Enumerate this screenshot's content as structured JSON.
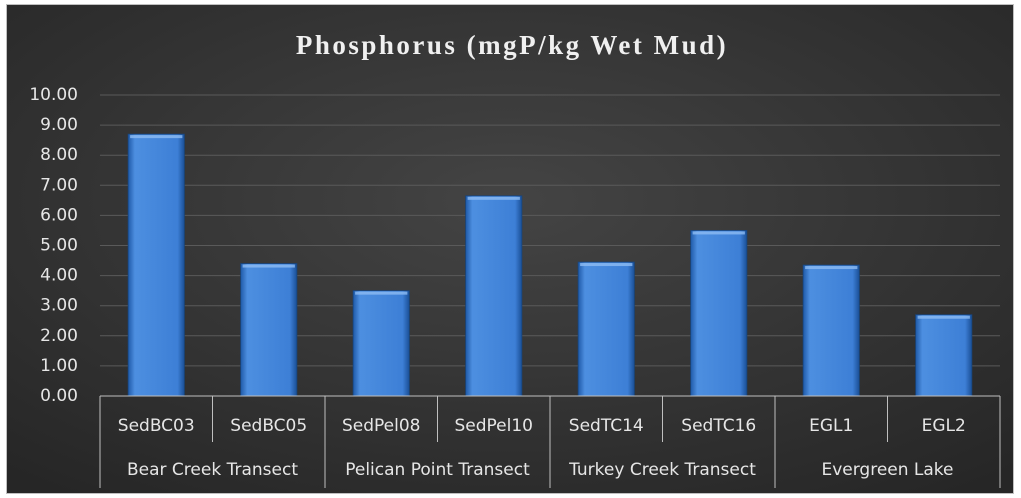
{
  "chart_data": {
    "type": "bar",
    "title": "Phosphorus (mgP/kg Wet Mud)",
    "categories": [
      "SedBC03",
      "SedBC05",
      "SedPel08",
      "SedPel10",
      "SedTC14",
      "SedTC16",
      "EGL1",
      "EGL2"
    ],
    "category_groups": [
      "Bear Creek Transect",
      "Pelican Point Transect",
      "Turkey Creek Transect",
      "Evergreen Lake"
    ],
    "values": [
      8.7,
      4.4,
      3.5,
      6.65,
      4.45,
      5.5,
      4.35,
      2.7
    ],
    "color": "#3d7fd6",
    "ylim": [
      0,
      10
    ],
    "yticks": [
      {
        "value": 0,
        "label": "0.00"
      },
      {
        "value": 1,
        "label": "1.00"
      },
      {
        "value": 2,
        "label": "2.00"
      },
      {
        "value": 3,
        "label": "3.00"
      },
      {
        "value": 4,
        "label": "4.00"
      },
      {
        "value": 5,
        "label": "5.00"
      },
      {
        "value": 6,
        "label": "6.00"
      },
      {
        "value": 7,
        "label": "7.00"
      },
      {
        "value": 8,
        "label": "8.00"
      },
      {
        "value": 9,
        "label": "9.00"
      },
      {
        "value": 10,
        "label": "10.00"
      }
    ],
    "grid": true
  }
}
